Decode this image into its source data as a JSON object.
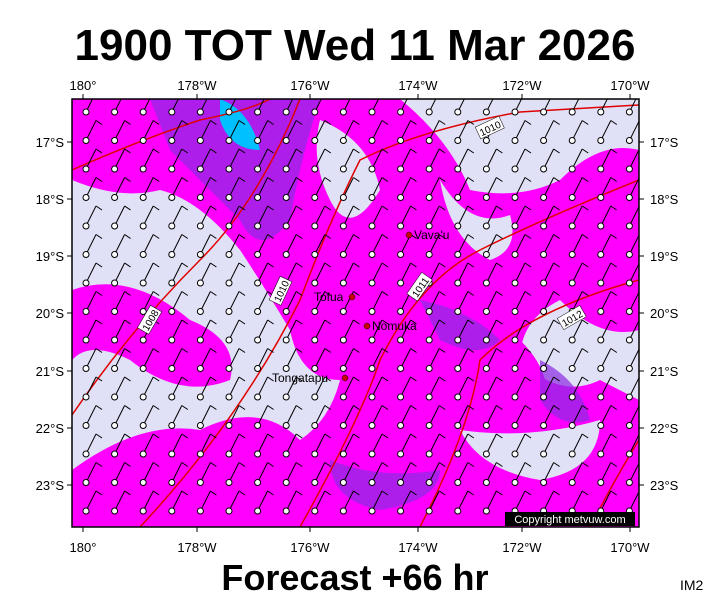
{
  "header": {
    "title": "1900 TOT Wed 11 Mar 2026"
  },
  "map": {
    "longitude_labels": [
      "180°",
      "178°W",
      "176°W",
      "174°W",
      "172°W",
      "170°W"
    ],
    "latitude_labels": [
      "17°S",
      "18°S",
      "19°S",
      "20°S",
      "21°S",
      "22°S",
      "23°S"
    ],
    "places": [
      "Vava'u",
      "Tofua",
      "Nomuka",
      "Tongatapu"
    ],
    "isobar_labels": [
      "1010",
      "1010",
      "1011",
      "1012",
      "1008"
    ],
    "copyright": "Copyright metvuw.com"
  },
  "footer": {
    "forecast": "Forecast +66 hr",
    "image_id": "IM2"
  }
}
